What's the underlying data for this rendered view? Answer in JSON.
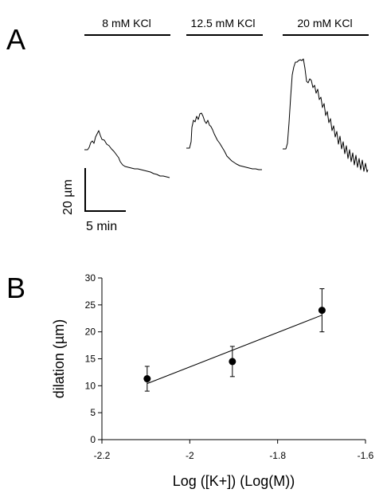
{
  "panel_a": {
    "label": "A",
    "conditions": [
      "8 mM KCl",
      "12.5 mM KCl",
      "20 mM KCl"
    ],
    "scale_bar": {
      "vertical_label": "20 µm",
      "horizontal_label": "5 min"
    }
  },
  "panel_b": {
    "label": "B"
  },
  "chart_data": {
    "type": "scatter",
    "title": "",
    "xlabel": "Log ([K+]) (Log(M))",
    "ylabel": "dilation (µm)",
    "xlim": [
      -2.2,
      -1.6
    ],
    "ylim": [
      0,
      30
    ],
    "x_ticks": [
      -2.2,
      -2.0,
      -1.8,
      -1.6
    ],
    "x_tick_labels": [
      "-2.2",
      "-2",
      "-1.8",
      "-1.6"
    ],
    "y_ticks": [
      0,
      5,
      10,
      15,
      20,
      25,
      30
    ],
    "y_tick_labels": [
      "0",
      "5",
      "10",
      "15",
      "20",
      "25",
      "30"
    ],
    "grid": false,
    "points": [
      {
        "x": -2.097,
        "y": 11.3,
        "err": 2.3
      },
      {
        "x": -1.903,
        "y": 14.5,
        "err": 2.8
      },
      {
        "x": -1.699,
        "y": 24.0,
        "err": 4.0
      }
    ],
    "fit_line": {
      "x": [
        -2.097,
        -1.699
      ],
      "y": [
        10.4,
        23.1
      ]
    }
  }
}
